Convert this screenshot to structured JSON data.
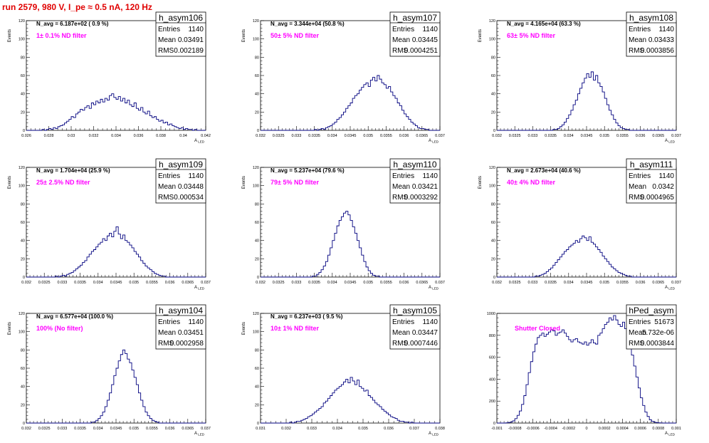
{
  "run_title": "run 2579,   980 V, I_pe ≈ 0.5 nA, 120 Hz",
  "stat_labels": {
    "entries": "Entries",
    "mean": "Mean",
    "rms": "RMS"
  },
  "chart_data": [
    {
      "type": "histogram",
      "name": "h_asym106",
      "navg": "N_avg = 6.187e+02 ( 0.9 %)",
      "filter": "1± 0.1% ND filter",
      "entries": "1140",
      "mean": "0.03491",
      "rms": "0.002189",
      "xlabel": "A_LED",
      "ylabel": "Events",
      "xlim": [
        0.026,
        0.042
      ],
      "ylim": [
        0,
        120
      ],
      "xticks": [
        "0.026",
        "0.028",
        "0.03",
        "0.032",
        "0.034",
        "0.036",
        "0.038",
        "0.04",
        "0.042"
      ],
      "yticks": [
        "0",
        "20",
        "40",
        "60",
        "80",
        "100",
        "120"
      ],
      "counts": [
        0,
        0,
        0,
        0,
        0,
        0,
        0,
        1,
        0,
        1,
        2,
        1,
        3,
        2,
        4,
        5,
        6,
        8,
        10,
        12,
        15,
        14,
        18,
        20,
        23,
        22,
        25,
        27,
        24,
        30,
        28,
        32,
        30,
        34,
        31,
        35,
        33,
        38,
        40,
        36,
        34,
        37,
        32,
        35,
        30,
        33,
        28,
        26,
        30,
        24,
        22,
        25,
        20,
        18,
        21,
        16,
        14,
        15,
        12,
        10,
        11,
        8,
        9,
        6,
        7,
        5,
        4,
        3,
        2,
        3,
        1,
        2,
        1,
        1,
        0,
        1,
        0,
        0,
        0,
        0
      ]
    },
    {
      "type": "histogram",
      "name": "h_asym107",
      "navg": "N_avg = 3.344e+04 (50.8 %)",
      "filter": "50± 5% ND filter",
      "entries": "1140",
      "mean": "0.03445",
      "rms": "0.0004251",
      "xlabel": "A_LED",
      "ylabel": "Events",
      "xlim": [
        0.032,
        0.037
      ],
      "ylim": [
        0,
        120
      ],
      "xticks": [
        "0.032",
        "0.0325",
        "0.033",
        "0.0335",
        "0.034",
        "0.0345",
        "0.035",
        "0.0355",
        "0.036",
        "0.0365",
        "0.037"
      ],
      "yticks": [
        "0",
        "20",
        "40",
        "60",
        "80",
        "100",
        "120"
      ],
      "counts": [
        0,
        0,
        0,
        0,
        0,
        0,
        0,
        0,
        0,
        0,
        0,
        0,
        0,
        0,
        0,
        0,
        0,
        0,
        0,
        0,
        0,
        0,
        0,
        0,
        1,
        0,
        1,
        2,
        1,
        3,
        4,
        5,
        7,
        9,
        12,
        14,
        17,
        20,
        24,
        27,
        30,
        35,
        38,
        40,
        44,
        47,
        50,
        52,
        48,
        55,
        58,
        54,
        60,
        56,
        52,
        50,
        46,
        48,
        42,
        38,
        35,
        30,
        27,
        22,
        18,
        15,
        12,
        9,
        7,
        5,
        3,
        2,
        2,
        1,
        1,
        0,
        0,
        0,
        0,
        0
      ]
    },
    {
      "type": "histogram",
      "name": "h_asym108",
      "navg": "N_avg = 4.165e+04 (63.3 %)",
      "filter": "63± 5% ND filter",
      "entries": "1140",
      "mean": "0.03433",
      "rms": "0.0003856",
      "xlabel": "A_LED",
      "ylabel": "Events",
      "xlim": [
        0.032,
        0.037
      ],
      "ylim": [
        0,
        120
      ],
      "xticks": [
        "0.032",
        "0.0325",
        "0.033",
        "0.0335",
        "0.034",
        "0.0345",
        "0.035",
        "0.0355",
        "0.036",
        "0.0365",
        "0.037"
      ],
      "yticks": [
        "0",
        "20",
        "40",
        "60",
        "80",
        "100",
        "120"
      ],
      "counts": [
        0,
        0,
        0,
        0,
        0,
        0,
        0,
        0,
        0,
        0,
        0,
        0,
        0,
        0,
        0,
        0,
        0,
        0,
        0,
        0,
        0,
        0,
        0,
        0,
        0,
        1,
        1,
        2,
        4,
        6,
        9,
        13,
        17,
        22,
        28,
        33,
        40,
        46,
        52,
        57,
        62,
        58,
        64,
        55,
        60,
        52,
        48,
        42,
        35,
        28,
        22,
        17,
        12,
        8,
        5,
        3,
        2,
        1,
        1,
        0,
        0,
        0,
        0,
        0,
        0,
        0,
        0,
        0,
        0,
        0,
        0,
        0,
        0,
        0,
        0,
        0,
        0,
        0,
        0,
        0
      ]
    },
    {
      "type": "histogram",
      "name": "h_asym109",
      "navg": "N_avg = 1.704e+04 (25.9 %)",
      "filter": "25± 2.5% ND filter",
      "entries": "1140",
      "mean": "0.03448",
      "rms": "0.000534",
      "xlabel": "A_LED",
      "ylabel": "Events",
      "xlim": [
        0.032,
        0.037
      ],
      "ylim": [
        0,
        120
      ],
      "xticks": [
        "0.032",
        "0.0325",
        "0.033",
        "0.0335",
        "0.034",
        "0.0345",
        "0.035",
        "0.0355",
        "0.036",
        "0.0365",
        "0.037"
      ],
      "yticks": [
        "0",
        "20",
        "40",
        "60",
        "80",
        "100",
        "120"
      ],
      "counts": [
        0,
        0,
        0,
        0,
        0,
        0,
        0,
        0,
        0,
        0,
        0,
        0,
        0,
        1,
        0,
        1,
        2,
        1,
        3,
        4,
        5,
        7,
        9,
        11,
        13,
        16,
        18,
        22,
        25,
        28,
        30,
        33,
        36,
        38,
        42,
        40,
        45,
        48,
        44,
        50,
        55,
        47,
        42,
        46,
        40,
        38,
        35,
        32,
        28,
        25,
        22,
        18,
        15,
        12,
        10,
        8,
        6,
        4,
        3,
        2,
        1,
        1,
        0,
        0,
        0,
        0,
        0,
        0,
        0,
        0,
        0,
        0,
        0,
        0,
        0,
        0,
        0,
        0,
        0,
        0
      ]
    },
    {
      "type": "histogram",
      "name": "h_asym110",
      "navg": "N_avg = 5.237e+04 (79.6 %)",
      "filter": "79± 5% ND filter",
      "entries": "1140",
      "mean": "0.03421",
      "rms": "0.0003292",
      "xlabel": "A_LED",
      "ylabel": "Events",
      "xlim": [
        0.032,
        0.037
      ],
      "ylim": [
        0,
        120
      ],
      "xticks": [
        "0.032",
        "0.0325",
        "0.033",
        "0.0335",
        "0.034",
        "0.0345",
        "0.035",
        "0.0355",
        "0.036",
        "0.0365",
        "0.037"
      ],
      "yticks": [
        "0",
        "20",
        "40",
        "60",
        "80",
        "100",
        "120"
      ],
      "counts": [
        0,
        0,
        0,
        0,
        0,
        0,
        0,
        0,
        0,
        0,
        0,
        0,
        0,
        0,
        0,
        0,
        0,
        0,
        0,
        0,
        0,
        0,
        0,
        1,
        1,
        3,
        5,
        8,
        12,
        17,
        24,
        32,
        40,
        48,
        56,
        62,
        66,
        70,
        72,
        68,
        62,
        55,
        48,
        40,
        32,
        24,
        17,
        11,
        7,
        4,
        2,
        1,
        1,
        0,
        0,
        0,
        0,
        0,
        0,
        0,
        0,
        0,
        0,
        0,
        0,
        0,
        0,
        0,
        0,
        0,
        0,
        0,
        0,
        0,
        0,
        0,
        0,
        0,
        0,
        0
      ]
    },
    {
      "type": "histogram",
      "name": "h_asym111",
      "navg": "N_avg = 2.673e+04 (40.6 %)",
      "filter": "40± 4% ND filter",
      "entries": "1140",
      "mean": "0.0342",
      "rms": "0.0004965",
      "xlabel": "A_LED",
      "ylabel": "Events",
      "xlim": [
        0.032,
        0.037
      ],
      "ylim": [
        0,
        120
      ],
      "xticks": [
        "0.032",
        "0.0325",
        "0.033",
        "0.0335",
        "0.034",
        "0.0345",
        "0.035",
        "0.0355",
        "0.036",
        "0.0365",
        "0.037"
      ],
      "yticks": [
        "0",
        "20",
        "40",
        "60",
        "80",
        "100",
        "120"
      ],
      "counts": [
        0,
        0,
        0,
        0,
        0,
        0,
        0,
        0,
        0,
        0,
        0,
        0,
        0,
        0,
        0,
        0,
        0,
        1,
        1,
        2,
        3,
        4,
        6,
        8,
        10,
        13,
        16,
        19,
        22,
        25,
        28,
        30,
        33,
        35,
        37,
        40,
        38,
        42,
        45,
        43,
        40,
        44,
        38,
        36,
        33,
        30,
        27,
        23,
        20,
        17,
        14,
        11,
        9,
        7,
        5,
        4,
        3,
        2,
        1,
        1,
        0,
        0,
        0,
        0,
        0,
        0,
        0,
        0,
        0,
        0,
        0,
        0,
        0,
        0,
        0,
        0,
        0,
        0,
        0,
        0
      ]
    },
    {
      "type": "histogram",
      "name": "h_asym104",
      "navg": "N_avg = 6.577e+04 (100.0 %)",
      "filter": "100% (No filter)",
      "entries": "1140",
      "mean": "0.03451",
      "rms": "0.0002958",
      "xlabel": "A_LED",
      "ylabel": "Events",
      "xlim": [
        0.032,
        0.037
      ],
      "ylim": [
        0,
        120
      ],
      "xticks": [
        "0.032",
        "0.0325",
        "0.033",
        "0.0335",
        "0.034",
        "0.0345",
        "0.035",
        "0.0355",
        "0.036",
        "0.0365",
        "0.037"
      ],
      "yticks": [
        "0",
        "20",
        "40",
        "60",
        "80",
        "100",
        "120"
      ],
      "counts": [
        0,
        0,
        0,
        0,
        0,
        0,
        0,
        0,
        0,
        0,
        0,
        0,
        0,
        0,
        0,
        0,
        0,
        0,
        0,
        0,
        0,
        0,
        0,
        0,
        0,
        0,
        0,
        0,
        0,
        1,
        1,
        3,
        5,
        8,
        12,
        18,
        25,
        33,
        42,
        52,
        60,
        68,
        75,
        80,
        76,
        70,
        66,
        58,
        50,
        42,
        33,
        25,
        18,
        12,
        8,
        5,
        3,
        2,
        1,
        0,
        0,
        0,
        0,
        0,
        0,
        0,
        0,
        0,
        0,
        0,
        0,
        0,
        0,
        0,
        0,
        0,
        0,
        0,
        0,
        0
      ]
    },
    {
      "type": "histogram",
      "name": "h_asym105",
      "navg": "N_avg = 6.237e+03 ( 9.5 %)",
      "filter": "10± 1% ND filter",
      "entries": "1140",
      "mean": "0.03447",
      "rms": "0.0007446",
      "xlabel": "A_LED",
      "ylabel": "Events",
      "xlim": [
        0.031,
        0.038
      ],
      "ylim": [
        0,
        120
      ],
      "xticks": [
        "0.031",
        "0.032",
        "0.033",
        "0.034",
        "0.035",
        "0.036",
        "0.037",
        "0.038"
      ],
      "yticks": [
        "0",
        "20",
        "40",
        "60",
        "80",
        "100",
        "120"
      ],
      "counts": [
        0,
        0,
        0,
        0,
        0,
        0,
        0,
        0,
        0,
        0,
        0,
        0,
        0,
        1,
        0,
        1,
        2,
        2,
        3,
        4,
        5,
        7,
        8,
        10,
        12,
        14,
        16,
        18,
        22,
        24,
        27,
        30,
        33,
        36,
        38,
        40,
        42,
        45,
        48,
        44,
        50,
        46,
        42,
        47,
        40,
        38,
        35,
        36,
        30,
        28,
        25,
        22,
        20,
        18,
        15,
        13,
        11,
        9,
        7,
        6,
        5,
        3,
        2,
        2,
        1,
        1,
        0,
        1,
        0,
        0,
        0,
        0,
        0,
        0,
        0,
        0,
        0,
        0,
        0,
        0
      ]
    },
    {
      "type": "histogram",
      "name": "hPed_asym",
      "navg": "",
      "filter": "Shutter Closed",
      "entries": "51673",
      "mean": "5.732e-06",
      "rms": "0.0003844",
      "xlabel": "A_LED",
      "ylabel": "",
      "xlim": [
        -0.001,
        0.001
      ],
      "ylim": [
        0,
        1000
      ],
      "xticks": [
        "-0.001",
        "-0.0008",
        "-0.0006",
        "-0.0004",
        "-0.0002",
        "0",
        "0.0002",
        "0.0004",
        "0.0006",
        "0.0008",
        "0.001"
      ],
      "yticks": [
        "0",
        "200",
        "400",
        "600",
        "800",
        "1000"
      ],
      "counts": [
        0,
        0,
        0,
        0,
        2,
        5,
        10,
        20,
        40,
        70,
        110,
        170,
        250,
        350,
        460,
        560,
        650,
        720,
        780,
        800,
        820,
        790,
        810,
        830,
        850,
        840,
        800,
        820,
        830,
        850,
        820,
        790,
        760,
        740,
        760,
        770,
        740,
        730,
        720,
        740,
        710,
        730,
        760,
        730,
        720,
        800,
        820,
        860,
        900,
        920,
        960,
        940,
        980,
        940,
        900,
        880,
        920,
        860,
        800,
        720,
        620,
        520,
        420,
        320,
        230,
        160,
        100,
        60,
        30,
        15,
        8,
        4,
        2,
        1,
        0,
        0,
        0,
        0,
        0,
        0
      ]
    }
  ]
}
